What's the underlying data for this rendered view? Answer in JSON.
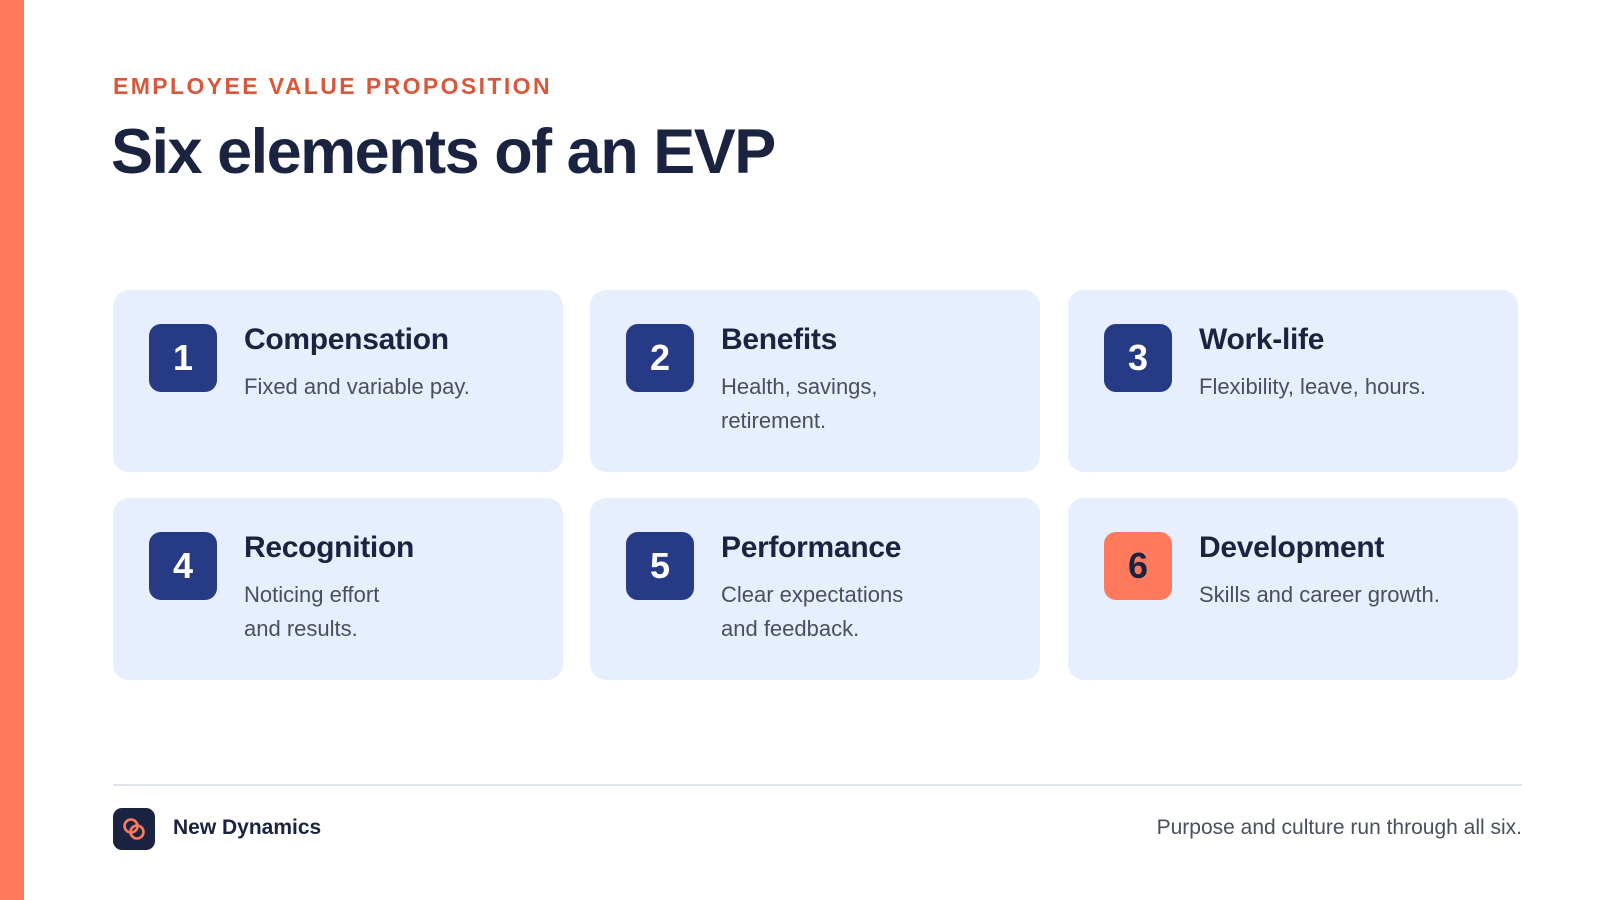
{
  "header": {
    "eyebrow": "EMPLOYEE VALUE PROPOSITION",
    "title": "Six elements of an EVP"
  },
  "cards": [
    {
      "number": "1",
      "title": "Compensation",
      "description": "Fixed and variable pay."
    },
    {
      "number": "2",
      "title": "Benefits",
      "description": "Health, savings,\nretirement."
    },
    {
      "number": "3",
      "title": "Work-life",
      "description": "Flexibility, leave, hours."
    },
    {
      "number": "4",
      "title": "Recognition",
      "description": "Noticing effort\nand results."
    },
    {
      "number": "5",
      "title": "Performance",
      "description": "Clear expectations\nand feedback."
    },
    {
      "number": "6",
      "title": "Development",
      "description": "Skills and career growth."
    }
  ],
  "footer": {
    "brand_name": "New Dynamics",
    "brand_icon": "interlocking-circles-icon",
    "note": "Purpose and culture run through all six."
  },
  "colors": {
    "accent": "#ff7a5c",
    "navy": "#263a86",
    "ink": "#1a2340",
    "card_background": "#e7eefd",
    "eyebrow": "#d9573a"
  }
}
